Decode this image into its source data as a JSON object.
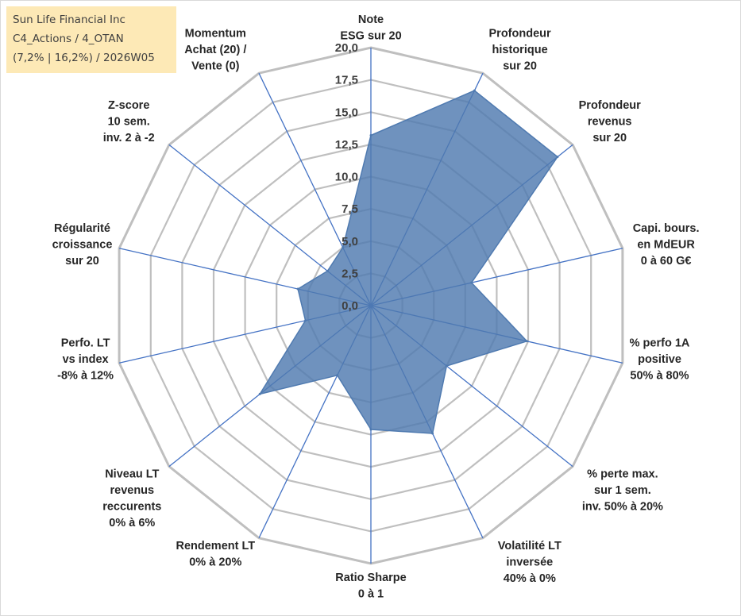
{
  "header": {
    "line1": "Sun Life Financial Inc",
    "line2": "C4_Actions / 4_OTAN",
    "line3": "(7,2% | 16,2%) / 2026W05"
  },
  "chart_data": {
    "type": "radar",
    "r_min": 0,
    "r_max": 20,
    "r_step": 2.5,
    "tick_labels": [
      "0,0",
      "2,5",
      "5,0",
      "7,5",
      "10,0",
      "12,5",
      "15,0",
      "17,5",
      "20,0"
    ],
    "axes": [
      {
        "label": [
          "Note",
          "ESG sur 20"
        ]
      },
      {
        "label": [
          "Profondeur",
          "historique",
          "sur 20"
        ]
      },
      {
        "label": [
          "Profondeur",
          "revenus",
          "sur 20"
        ]
      },
      {
        "label": [
          "Capi. bours.",
          "en MdEUR",
          "0 à 60 G€"
        ]
      },
      {
        "label": [
          "% perfo 1A",
          "positive",
          "50% à 80%"
        ]
      },
      {
        "label": [
          "% perte max.",
          "sur 1 sem.",
          "inv. 50% à 20%"
        ]
      },
      {
        "label": [
          "Volatilité LT",
          "inversée",
          "40% à 0%"
        ]
      },
      {
        "label": [
          "Ratio Sharpe",
          "0 à 1"
        ]
      },
      {
        "label": [
          "Rendement LT",
          "0% à 20%"
        ]
      },
      {
        "label": [
          "Niveau LT",
          "revenus",
          "reccurents",
          "0% à 6%"
        ]
      },
      {
        "label": [
          "Perfo. LT",
          "vs index",
          "-8% à 12%"
        ]
      },
      {
        "label": [
          "Régularité",
          "croissance",
          "sur 20"
        ]
      },
      {
        "label": [
          "Z-score",
          "10 sem.",
          "inv. 2 à -2"
        ]
      },
      {
        "label": [
          "Momentum",
          "Achat (20) /",
          "Vente (0)"
        ]
      }
    ],
    "series": [
      {
        "values": [
          13.2,
          18.5,
          18.5,
          8.0,
          12.4,
          7.5,
          11.0,
          9.6,
          6.0,
          11.0,
          5.2,
          5.8,
          4.3,
          5.0
        ],
        "color": "#4f7ab0"
      }
    ],
    "grid": true,
    "colors": {
      "grid": "#bfbfbf",
      "spoke": "#4472c4",
      "fill": "#4f7ab0"
    }
  }
}
